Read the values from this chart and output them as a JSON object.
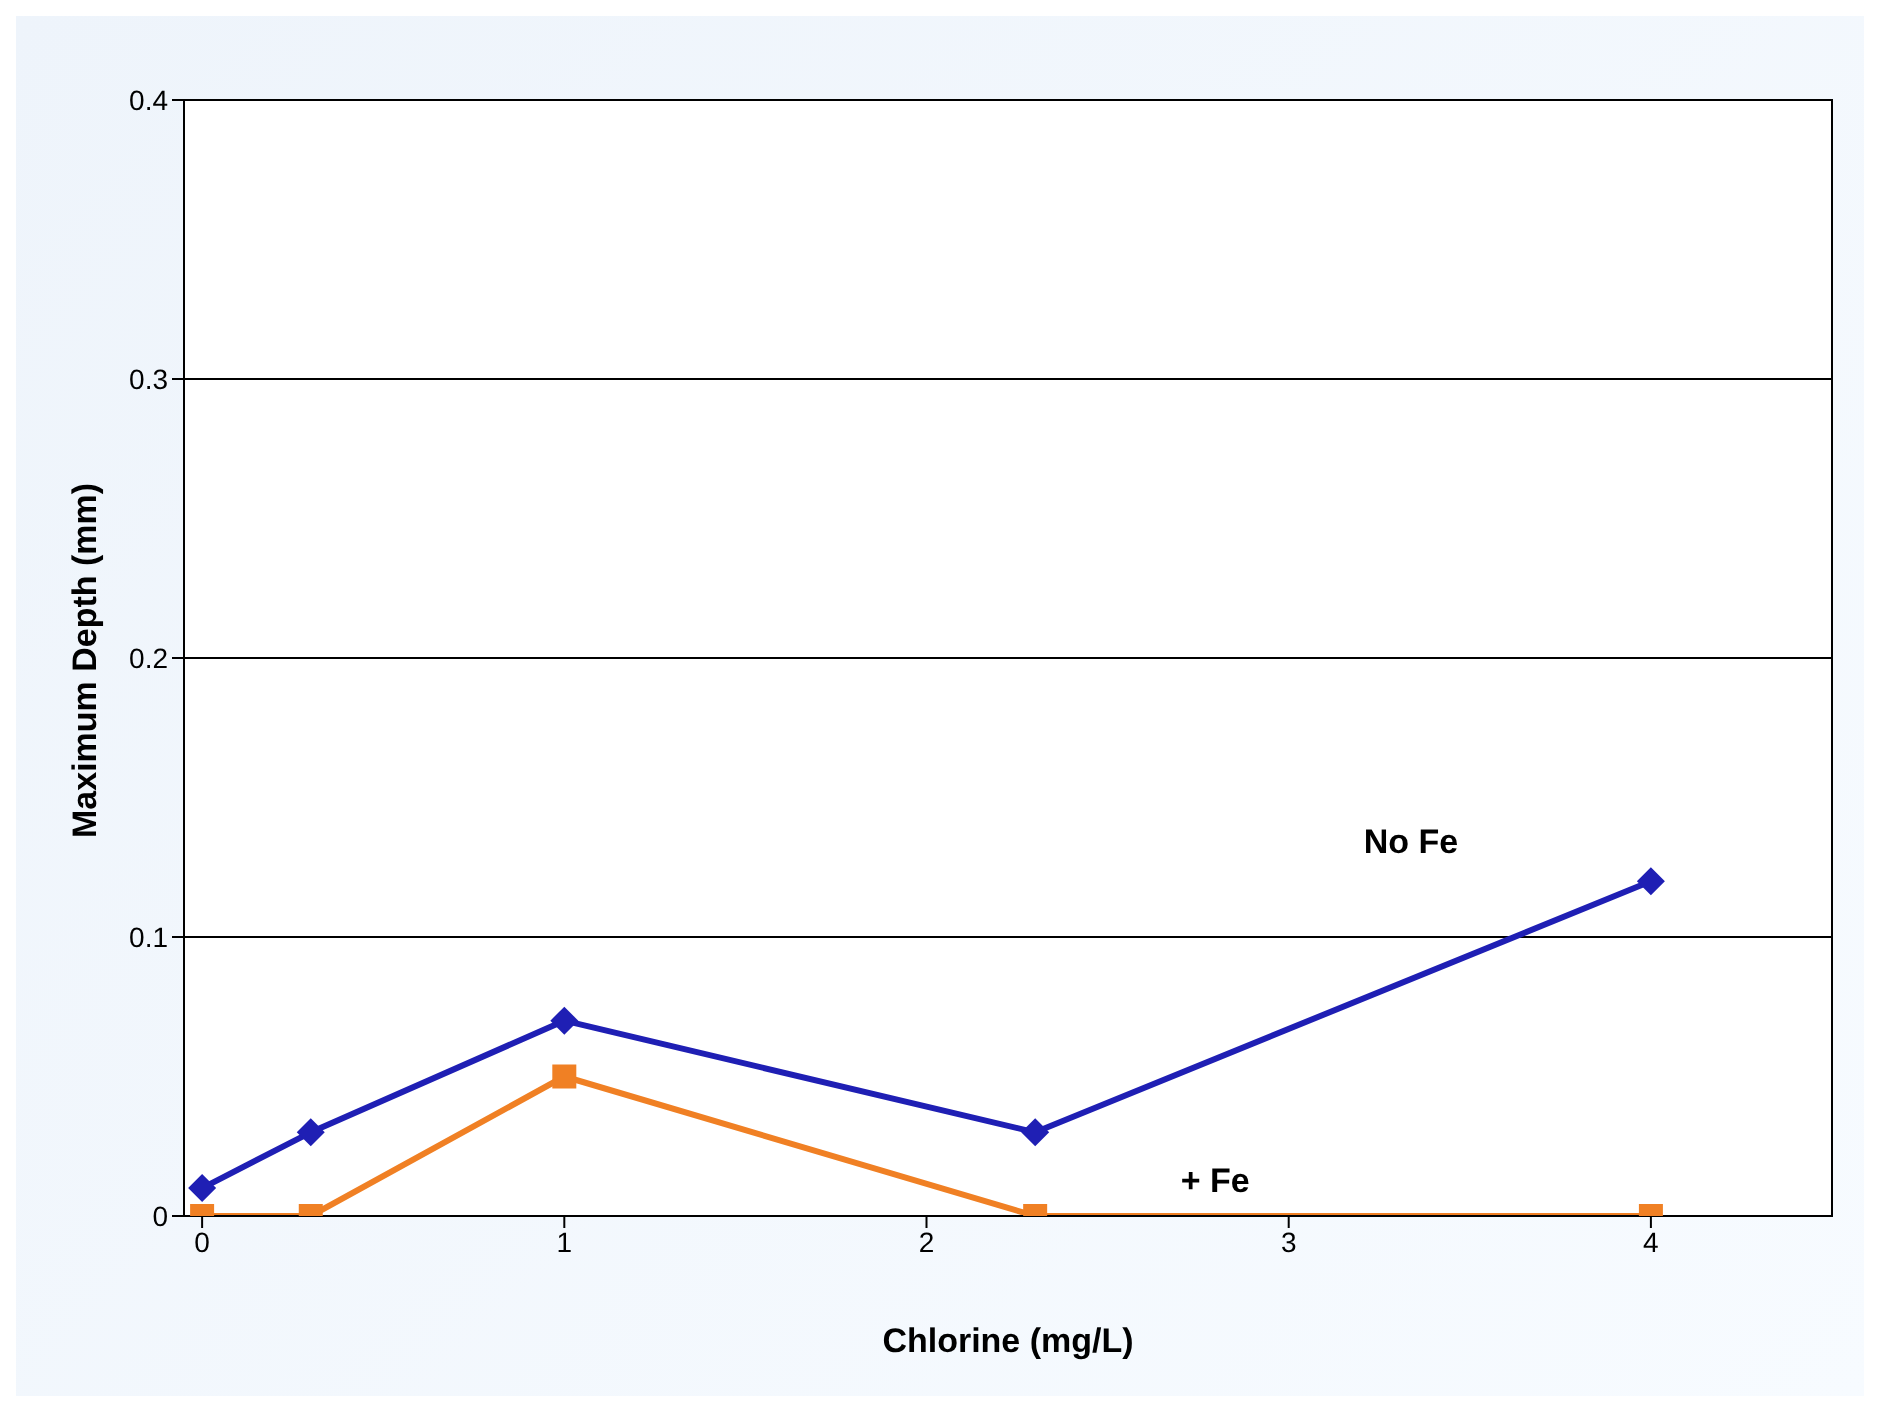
{
  "chart_data": {
    "type": "line",
    "xlabel": "Chlorine (mg/L)",
    "ylabel": "Maximum Depth (mm)",
    "xlim": [
      -0.05,
      4.5
    ],
    "xticks": [
      0,
      1,
      2,
      3,
      4
    ],
    "ylim": [
      0,
      0.4
    ],
    "yticks": [
      0,
      0.1,
      0.2,
      0.3,
      0.4
    ],
    "grid": "y",
    "legend": false,
    "series": [
      {
        "name": "No Fe",
        "color": "#1f1fb4",
        "marker": "diamond",
        "x": [
          0,
          0.3,
          1,
          2.3,
          4
        ],
        "values": [
          0.01,
          0.03,
          0.07,
          0.03,
          0.12
        ]
      },
      {
        "name": "+ Fe",
        "color": "#f08024",
        "marker": "square",
        "x": [
          0,
          0.3,
          1,
          2.3,
          4
        ],
        "values": [
          0,
          0,
          0.05,
          0,
          0
        ]
      }
    ]
  }
}
